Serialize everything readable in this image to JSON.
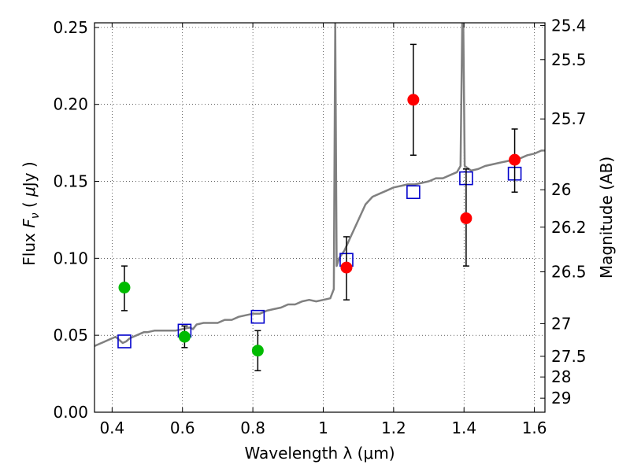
{
  "chart_data": {
    "type": "scatter",
    "xlabel": "Wavelength  λ (μm)",
    "ylabel": "Flux  F_ν  ( μJy )",
    "ylabel_parts": [
      "Flux  ",
      "F",
      "ν",
      "  ( ",
      "μ",
      "Jy )"
    ],
    "y2label": "Magnitude (AB)",
    "xlim": [
      0.35,
      1.63
    ],
    "ylim": [
      0.0,
      0.253
    ],
    "grid": true,
    "x_ticks": [
      0.4,
      0.6,
      0.8,
      1.0,
      1.2,
      1.4,
      1.6
    ],
    "x_tick_labels": [
      "0.4",
      "0.6",
      "0.8",
      "1",
      "1.2",
      "1.4",
      "1.6"
    ],
    "y_ticks": [
      0.0,
      0.05,
      0.1,
      0.15,
      0.2,
      0.25
    ],
    "y_tick_labels": [
      "0.00",
      "0.05",
      "0.10",
      "0.15",
      "0.20",
      "0.25"
    ],
    "y2_ticks": [
      25.4,
      25.5,
      25.7,
      26,
      26.2,
      26.5,
      27,
      27.5,
      28,
      29
    ],
    "y2_tick_labels": [
      "25.4",
      "25.5",
      "25.7",
      "26",
      "26.2",
      "26.5",
      "27",
      "27.5",
      "28",
      "29"
    ],
    "colors": {
      "green": "#00bb00",
      "red": "#ff0000",
      "model_box": "#0000cc",
      "spectrum": "#808080",
      "errorbar": "#000000"
    },
    "series": [
      {
        "marker": "circle-green",
        "points": [
          {
            "x": 0.435,
            "y": 0.081,
            "lo": 0.066,
            "hi": 0.095
          },
          {
            "x": 0.606,
            "y": 0.049,
            "lo": 0.042,
            "hi": 0.056
          },
          {
            "x": 0.814,
            "y": 0.04,
            "lo": 0.027,
            "hi": 0.053
          }
        ]
      },
      {
        "marker": "circle-red",
        "points": [
          {
            "x": 1.066,
            "y": 0.094,
            "lo": 0.073,
            "hi": 0.114
          },
          {
            "x": 1.256,
            "y": 0.203,
            "lo": 0.167,
            "hi": 0.239
          },
          {
            "x": 1.406,
            "y": 0.126,
            "lo": 0.095,
            "hi": 0.158
          },
          {
            "x": 1.544,
            "y": 0.164,
            "lo": 0.143,
            "hi": 0.184
          }
        ]
      },
      {
        "marker": "square-blue",
        "points": [
          {
            "x": 0.435,
            "y": 0.046
          },
          {
            "x": 0.606,
            "y": 0.053
          },
          {
            "x": 0.814,
            "y": 0.062
          },
          {
            "x": 1.066,
            "y": 0.099
          },
          {
            "x": 1.256,
            "y": 0.143
          },
          {
            "x": 1.406,
            "y": 0.152
          },
          {
            "x": 1.544,
            "y": 0.155
          }
        ]
      },
      {
        "marker": "line-gray",
        "points": [
          [
            0.35,
            0.043
          ],
          [
            0.36,
            0.044
          ],
          [
            0.37,
            0.045
          ],
          [
            0.38,
            0.046
          ],
          [
            0.39,
            0.047
          ],
          [
            0.4,
            0.048
          ],
          [
            0.41,
            0.049
          ],
          [
            0.42,
            0.047
          ],
          [
            0.43,
            0.045
          ],
          [
            0.44,
            0.046
          ],
          [
            0.45,
            0.048
          ],
          [
            0.46,
            0.049
          ],
          [
            0.47,
            0.05
          ],
          [
            0.48,
            0.051
          ],
          [
            0.49,
            0.052
          ],
          [
            0.5,
            0.052
          ],
          [
            0.52,
            0.053
          ],
          [
            0.54,
            0.053
          ],
          [
            0.56,
            0.053
          ],
          [
            0.58,
            0.053
          ],
          [
            0.6,
            0.054
          ],
          [
            0.62,
            0.055
          ],
          [
            0.63,
            0.054
          ],
          [
            0.64,
            0.057
          ],
          [
            0.66,
            0.058
          ],
          [
            0.68,
            0.058
          ],
          [
            0.7,
            0.058
          ],
          [
            0.72,
            0.06
          ],
          [
            0.74,
            0.06
          ],
          [
            0.76,
            0.062
          ],
          [
            0.78,
            0.063
          ],
          [
            0.8,
            0.064
          ],
          [
            0.82,
            0.064
          ],
          [
            0.84,
            0.066
          ],
          [
            0.86,
            0.067
          ],
          [
            0.88,
            0.068
          ],
          [
            0.9,
            0.07
          ],
          [
            0.92,
            0.07
          ],
          [
            0.94,
            0.072
          ],
          [
            0.96,
            0.073
          ],
          [
            0.98,
            0.072
          ],
          [
            1.0,
            0.073
          ],
          [
            1.02,
            0.074
          ],
          [
            1.03,
            0.08
          ],
          [
            1.034,
            0.253
          ],
          [
            1.038,
            0.095
          ],
          [
            1.045,
            0.1
          ],
          [
            1.06,
            0.105
          ],
          [
            1.08,
            0.115
          ],
          [
            1.1,
            0.125
          ],
          [
            1.12,
            0.135
          ],
          [
            1.14,
            0.14
          ],
          [
            1.16,
            0.142
          ],
          [
            1.18,
            0.144
          ],
          [
            1.2,
            0.146
          ],
          [
            1.22,
            0.147
          ],
          [
            1.24,
            0.148
          ],
          [
            1.26,
            0.148
          ],
          [
            1.28,
            0.149
          ],
          [
            1.3,
            0.15
          ],
          [
            1.32,
            0.152
          ],
          [
            1.34,
            0.152
          ],
          [
            1.36,
            0.154
          ],
          [
            1.38,
            0.156
          ],
          [
            1.39,
            0.16
          ],
          [
            1.395,
            0.253
          ],
          [
            1.398,
            0.253
          ],
          [
            1.402,
            0.16
          ],
          [
            1.42,
            0.157
          ],
          [
            1.44,
            0.158
          ],
          [
            1.46,
            0.16
          ],
          [
            1.48,
            0.161
          ],
          [
            1.5,
            0.162
          ],
          [
            1.52,
            0.163
          ],
          [
            1.54,
            0.164
          ],
          [
            1.56,
            0.165
          ],
          [
            1.58,
            0.167
          ],
          [
            1.6,
            0.168
          ],
          [
            1.62,
            0.17
          ],
          [
            1.63,
            0.17
          ]
        ]
      }
    ]
  }
}
